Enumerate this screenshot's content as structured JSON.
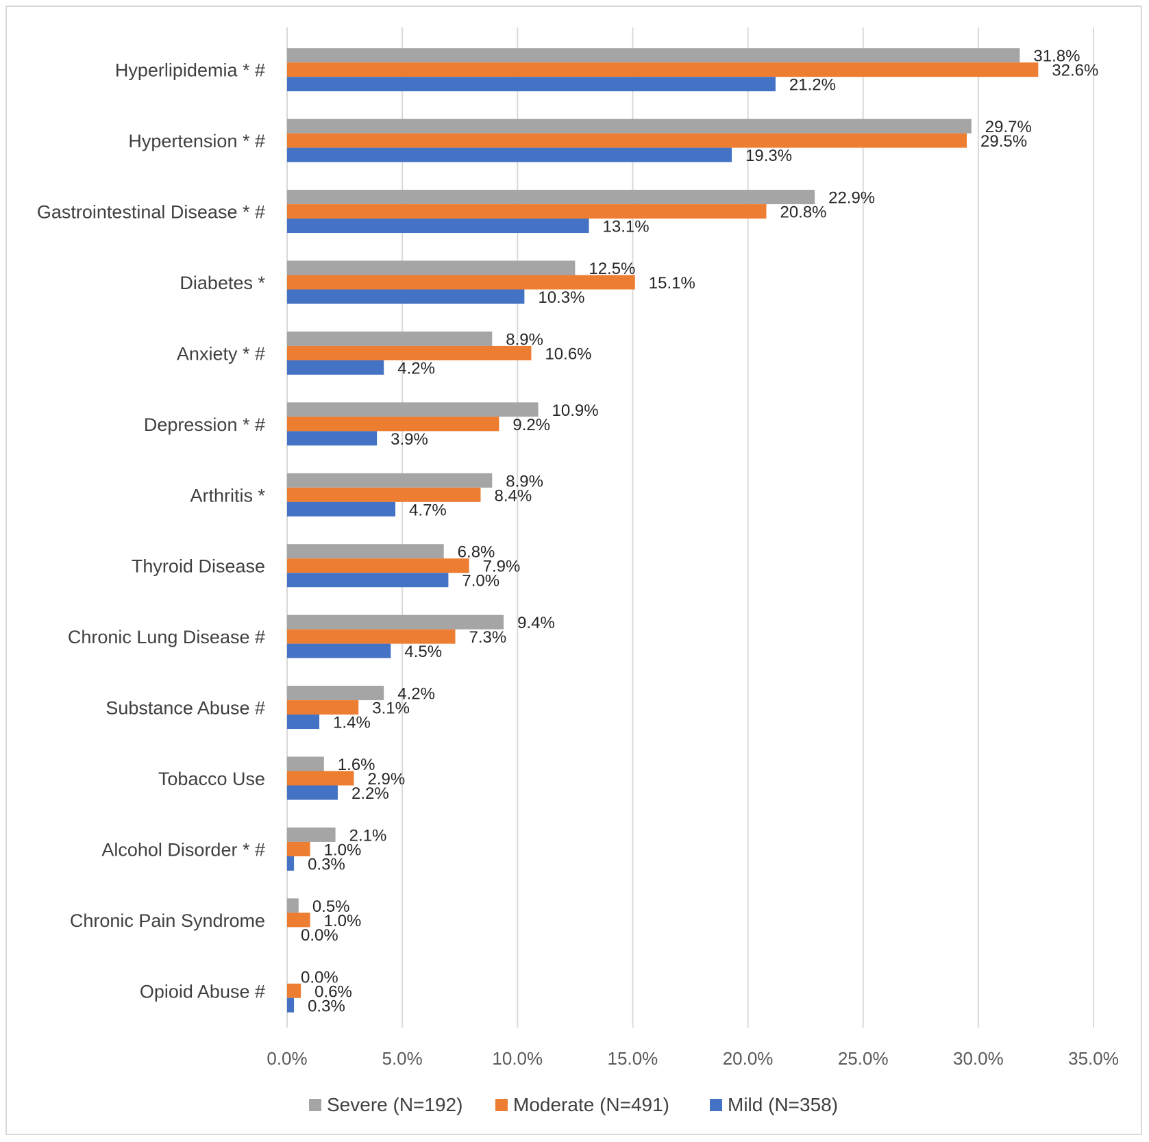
{
  "chart_data": {
    "type": "bar",
    "orientation": "horizontal",
    "title": "",
    "xlabel": "",
    "ylabel": "",
    "xlim": [
      0,
      35
    ],
    "x_ticks": [
      "0.0%",
      "5.0%",
      "10.0%",
      "15.0%",
      "20.0%",
      "25.0%",
      "30.0%",
      "35.0%"
    ],
    "grid": true,
    "legend_position": "bottom",
    "categories": [
      "Hyperlipidemia * #",
      "Hypertension * #",
      "Gastrointestinal Disease * #",
      "Diabetes *",
      "Anxiety * #",
      "Depression * #",
      "Arthritis *",
      "Thyroid Disease",
      "Chronic Lung Disease #",
      "Substance Abuse #",
      "Tobacco Use",
      "Alcohol Disorder * #",
      "Chronic Pain Syndrome",
      "Opioid Abuse #"
    ],
    "series": [
      {
        "name": "Severe (N=192)",
        "color": "#a5a5a5",
        "values": [
          31.8,
          29.7,
          22.9,
          12.5,
          8.9,
          10.9,
          8.9,
          6.8,
          9.4,
          4.2,
          1.6,
          2.1,
          0.5,
          0.0
        ],
        "labels": [
          "31.8%",
          "29.7%",
          "22.9%",
          "12.5%",
          "8.9%",
          "10.9%",
          "8.9%",
          "6.8%",
          "9.4%",
          "4.2%",
          "1.6%",
          "2.1%",
          "0.5%",
          "0.0%"
        ]
      },
      {
        "name": "Moderate (N=491)",
        "color": "#ed7d31",
        "values": [
          32.6,
          29.5,
          20.8,
          15.1,
          10.6,
          9.2,
          8.4,
          7.9,
          7.3,
          3.1,
          2.9,
          1.0,
          1.0,
          0.6
        ],
        "labels": [
          "32.6%",
          "29.5%",
          "20.8%",
          "15.1%",
          "10.6%",
          "9.2%",
          "8.4%",
          "7.9%",
          "7.3%",
          "3.1%",
          "2.9%",
          "1.0%",
          "1.0%",
          "0.6%"
        ]
      },
      {
        "name": "Mild (N=358)",
        "color": "#4472c4",
        "values": [
          21.2,
          19.3,
          13.1,
          10.3,
          4.2,
          3.9,
          4.7,
          7.0,
          4.5,
          1.4,
          2.2,
          0.3,
          0.0,
          0.3
        ],
        "labels": [
          "21.2%",
          "19.3%",
          "13.1%",
          "10.3%",
          "4.2%",
          "3.9%",
          "4.7%",
          "7.0%",
          "4.5%",
          "1.4%",
          "2.2%",
          "0.3%",
          "0.0%",
          "0.3%"
        ]
      }
    ]
  }
}
